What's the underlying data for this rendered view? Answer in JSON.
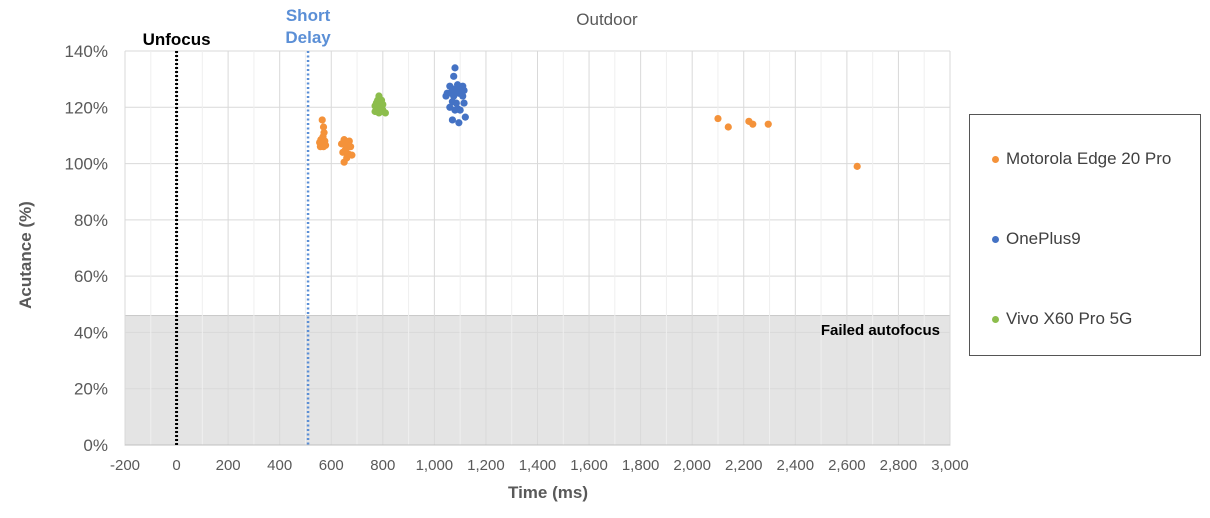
{
  "chart_data": {
    "type": "scatter",
    "title": "Outdoor",
    "xlabel": "Time (ms)",
    "ylabel": "Acutance (%)",
    "xlim": [
      -200,
      3000
    ],
    "ylim": [
      0,
      140
    ],
    "x_ticks": [
      -200,
      0,
      200,
      400,
      600,
      800,
      1000,
      1200,
      1400,
      1600,
      1800,
      2000,
      2200,
      2400,
      2600,
      2800,
      3000
    ],
    "x_tick_labels": [
      "-200",
      "0",
      "200",
      "400",
      "600",
      "800",
      "1,000",
      "1,200",
      "1,400",
      "1,600",
      "1,800",
      "2,000",
      "2,200",
      "2,400",
      "2,600",
      "2,800",
      "3,000"
    ],
    "y_ticks": [
      0,
      20,
      40,
      60,
      80,
      100,
      120,
      140
    ],
    "y_tick_labels": [
      "0%",
      "20%",
      "40%",
      "60%",
      "80%",
      "100%",
      "120%",
      "140%"
    ],
    "grid": true,
    "legend_position": "right",
    "failed_region": {
      "label": "Failed autofocus",
      "y_max": 46,
      "color": "#e4e4e4"
    },
    "reference_lines": [
      {
        "label": "Unfocus",
        "x": 0,
        "color": "#000000",
        "style": "dotted"
      },
      {
        "label_lines": [
          "Short",
          "Delay"
        ],
        "x": 510,
        "color": "#5b8fd6",
        "style": "dotted"
      }
    ],
    "series": [
      {
        "name": "Motorola Edge 20 Pro",
        "color": "#f4923a",
        "points": [
          [
            565,
            115.5
          ],
          [
            570,
            113
          ],
          [
            572,
            111
          ],
          [
            568,
            109.5
          ],
          [
            560,
            108.5
          ],
          [
            575,
            108
          ],
          [
            555,
            107.5
          ],
          [
            563,
            107
          ],
          [
            578,
            106.5
          ],
          [
            558,
            106
          ],
          [
            570,
            106
          ],
          [
            650,
            108.5
          ],
          [
            670,
            108
          ],
          [
            640,
            107
          ],
          [
            660,
            106.5
          ],
          [
            675,
            106
          ],
          [
            655,
            105
          ],
          [
            645,
            104
          ],
          [
            665,
            103.5
          ],
          [
            680,
            103
          ],
          [
            660,
            102
          ],
          [
            650,
            100.5
          ],
          [
            2100,
            116
          ],
          [
            2140,
            113
          ],
          [
            2220,
            115
          ],
          [
            2235,
            114
          ],
          [
            2295,
            114
          ],
          [
            2640,
            99
          ]
        ]
      },
      {
        "name": "OnePlus9",
        "color": "#4472c4",
        "points": [
          [
            1080,
            134
          ],
          [
            1075,
            131
          ],
          [
            1090,
            128
          ],
          [
            1060,
            127.5
          ],
          [
            1110,
            127.5
          ],
          [
            1070,
            126.5
          ],
          [
            1100,
            126
          ],
          [
            1085,
            126
          ],
          [
            1115,
            126
          ],
          [
            1050,
            125
          ],
          [
            1095,
            125
          ],
          [
            1065,
            125
          ],
          [
            1075,
            124
          ],
          [
            1110,
            124
          ],
          [
            1045,
            124
          ],
          [
            1070,
            122
          ],
          [
            1085,
            121.5
          ],
          [
            1115,
            121.5
          ],
          [
            1060,
            120
          ],
          [
            1090,
            119.5
          ],
          [
            1080,
            119
          ],
          [
            1100,
            119
          ],
          [
            1120,
            116.5
          ],
          [
            1070,
            115.5
          ],
          [
            1095,
            114.5
          ]
        ]
      },
      {
        "name": "Vivo X60 Pro 5G",
        "color": "#8cbd4c",
        "points": [
          [
            785,
            124
          ],
          [
            780,
            122.5
          ],
          [
            795,
            122.5
          ],
          [
            775,
            121.5
          ],
          [
            790,
            121.5
          ],
          [
            785,
            121
          ],
          [
            800,
            121
          ],
          [
            770,
            120.5
          ],
          [
            790,
            120
          ],
          [
            780,
            120
          ],
          [
            795,
            120
          ],
          [
            775,
            119.5
          ],
          [
            785,
            119
          ],
          [
            800,
            119
          ],
          [
            770,
            118.5
          ],
          [
            780,
            118.5
          ],
          [
            795,
            118.5
          ],
          [
            785,
            118
          ],
          [
            810,
            118
          ]
        ]
      }
    ]
  }
}
